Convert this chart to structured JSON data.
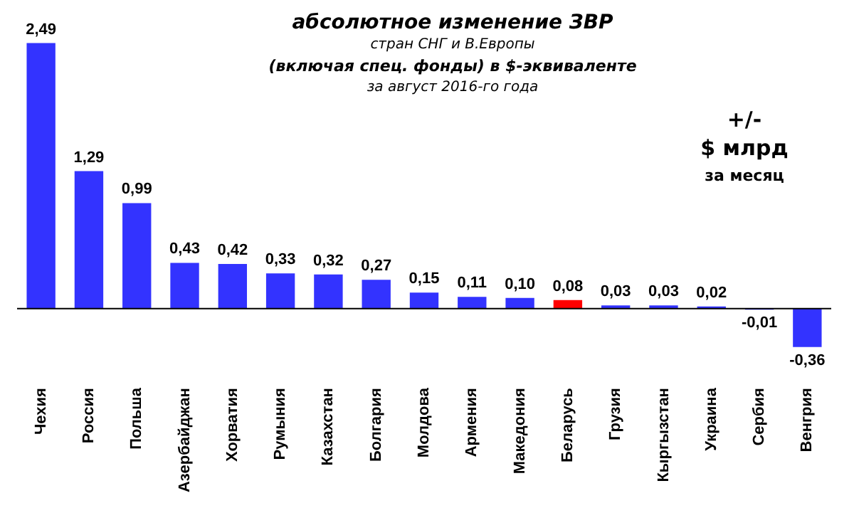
{
  "chart_data": {
    "type": "bar",
    "title": "абсолютное изменение  ЗВР",
    "subtitle": [
      "стран СНГ и В.Европы",
      "(включая  спец. фонды) в $-эквиваленте",
      "за август 2016-го года"
    ],
    "categories": [
      "Чехия",
      "Россия",
      "Польша",
      "Азербайджан",
      "Хорватия",
      "Румыния",
      "Казахстан",
      "Болгария",
      "Молдова",
      "Армения",
      "Македония",
      "Беларусь",
      "Грузия",
      "Кыргызстан",
      "Украина",
      "Сербия",
      "Венгрия"
    ],
    "values": [
      2.49,
      1.29,
      0.99,
      0.43,
      0.42,
      0.33,
      0.32,
      0.27,
      0.15,
      0.11,
      0.1,
      0.08,
      0.03,
      0.03,
      0.02,
      -0.01,
      -0.36
    ],
    "colors": [
      "#3333ff",
      "#3333ff",
      "#3333ff",
      "#3333ff",
      "#3333ff",
      "#3333ff",
      "#3333ff",
      "#3333ff",
      "#3333ff",
      "#3333ff",
      "#3333ff",
      "#ff0000",
      "#3333ff",
      "#3333ff",
      "#3333ff",
      "#3333ff",
      "#3333ff"
    ],
    "value_labels": [
      "2,49",
      "1,29",
      "0,99",
      "0,43",
      "0,42",
      "0,33",
      "0,32",
      "0,27",
      "0,15",
      "0,11",
      "0,10",
      "0,08",
      "0,03",
      "0,03",
      "0,02",
      "-0,01",
      "-0,36"
    ],
    "annotations": [
      "+/-",
      "$ млрд",
      "за месяц"
    ],
    "grid": false,
    "legend": false
  }
}
